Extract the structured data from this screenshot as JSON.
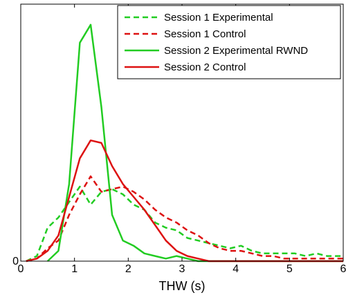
{
  "chart_data": {
    "type": "line",
    "title": "",
    "xlabel": "THW (s)",
    "ylabel": "",
    "xlim": [
      0,
      6
    ],
    "ylim": [
      0,
      1
    ],
    "x_ticks": [
      "0",
      "1",
      "2",
      "3",
      "4",
      "5",
      "6"
    ],
    "y_ticks": [
      "0"
    ],
    "grid": false,
    "legend_position": "top-right",
    "series": [
      {
        "name": "Session 1 Experimental",
        "color": "#22cc22",
        "dash": true,
        "points": [
          [
            0.1,
            0
          ],
          [
            0.3,
            0.02
          ],
          [
            0.5,
            0.13
          ],
          [
            0.7,
            0.17
          ],
          [
            0.9,
            0.23
          ],
          [
            1.1,
            0.29
          ],
          [
            1.3,
            0.22
          ],
          [
            1.5,
            0.27
          ],
          [
            1.7,
            0.28
          ],
          [
            1.9,
            0.26
          ],
          [
            2.1,
            0.22
          ],
          [
            2.3,
            0.2
          ],
          [
            2.5,
            0.15
          ],
          [
            2.7,
            0.13
          ],
          [
            2.9,
            0.12
          ],
          [
            3.1,
            0.09
          ],
          [
            3.3,
            0.08
          ],
          [
            3.5,
            0.07
          ],
          [
            3.7,
            0.06
          ],
          [
            3.9,
            0.05
          ],
          [
            4.1,
            0.06
          ],
          [
            4.3,
            0.04
          ],
          [
            4.5,
            0.03
          ],
          [
            4.7,
            0.03
          ],
          [
            4.9,
            0.03
          ],
          [
            5.1,
            0.03
          ],
          [
            5.3,
            0.02
          ],
          [
            5.5,
            0.03
          ],
          [
            5.7,
            0.02
          ],
          [
            5.9,
            0.02
          ],
          [
            6.0,
            0.02
          ]
        ]
      },
      {
        "name": "Session 1 Control",
        "color": "#dd1111",
        "dash": true,
        "points": [
          [
            0.1,
            0
          ],
          [
            0.3,
            0.01
          ],
          [
            0.5,
            0.05
          ],
          [
            0.7,
            0.08
          ],
          [
            0.9,
            0.18
          ],
          [
            1.1,
            0.26
          ],
          [
            1.3,
            0.33
          ],
          [
            1.5,
            0.27
          ],
          [
            1.7,
            0.28
          ],
          [
            1.9,
            0.29
          ],
          [
            2.1,
            0.27
          ],
          [
            2.3,
            0.24
          ],
          [
            2.5,
            0.2
          ],
          [
            2.7,
            0.17
          ],
          [
            2.9,
            0.15
          ],
          [
            3.1,
            0.12
          ],
          [
            3.3,
            0.1
          ],
          [
            3.5,
            0.07
          ],
          [
            3.7,
            0.05
          ],
          [
            3.9,
            0.04
          ],
          [
            4.1,
            0.04
          ],
          [
            4.3,
            0.03
          ],
          [
            4.5,
            0.02
          ],
          [
            4.7,
            0.02
          ],
          [
            4.9,
            0.01
          ],
          [
            5.1,
            0.01
          ],
          [
            5.3,
            0.01
          ],
          [
            5.5,
            0.01
          ],
          [
            5.7,
            0.01
          ],
          [
            6.0,
            0.01
          ]
        ]
      },
      {
        "name": "Session 2 Experimental RWND",
        "color": "#22cc22",
        "dash": false,
        "points": [
          [
            0.5,
            0
          ],
          [
            0.7,
            0.04
          ],
          [
            0.9,
            0.3
          ],
          [
            1.1,
            0.85
          ],
          [
            1.3,
            0.92
          ],
          [
            1.5,
            0.6
          ],
          [
            1.7,
            0.18
          ],
          [
            1.9,
            0.08
          ],
          [
            2.1,
            0.06
          ],
          [
            2.3,
            0.03
          ],
          [
            2.5,
            0.02
          ],
          [
            2.7,
            0.01
          ],
          [
            2.9,
            0.02
          ],
          [
            3.1,
            0.01
          ],
          [
            3.3,
            0
          ],
          [
            3.5,
            0
          ],
          [
            6.0,
            0
          ]
        ]
      },
      {
        "name": "Session 2 Control",
        "color": "#dd1111",
        "dash": false,
        "points": [
          [
            0.1,
            0
          ],
          [
            0.3,
            0.01
          ],
          [
            0.5,
            0.04
          ],
          [
            0.7,
            0.1
          ],
          [
            0.9,
            0.25
          ],
          [
            1.1,
            0.4
          ],
          [
            1.3,
            0.47
          ],
          [
            1.5,
            0.46
          ],
          [
            1.7,
            0.37
          ],
          [
            1.9,
            0.3
          ],
          [
            2.1,
            0.25
          ],
          [
            2.3,
            0.2
          ],
          [
            2.5,
            0.14
          ],
          [
            2.7,
            0.08
          ],
          [
            2.9,
            0.04
          ],
          [
            3.1,
            0.02
          ],
          [
            3.3,
            0.01
          ],
          [
            3.5,
            0
          ],
          [
            6.0,
            0
          ]
        ]
      }
    ]
  }
}
